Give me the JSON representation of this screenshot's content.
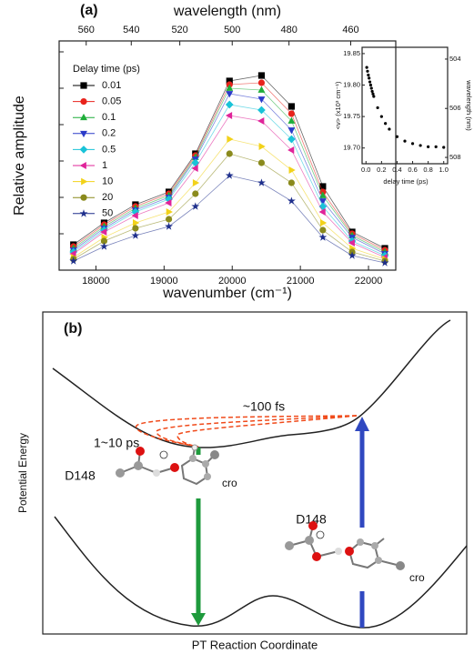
{
  "chart_data": [
    {
      "type": "line",
      "label": "(a)",
      "x_label": "wavenumber (cm⁻¹)",
      "x2_label": "wavelength (nm)",
      "y_label": "Relative amplitude",
      "legend_title": "Delay time (ps)",
      "x": [
        17670,
        18120,
        18580,
        19070,
        19460,
        19960,
        20430,
        20870,
        21330,
        21760,
        22240
      ],
      "series": [
        {
          "name": "0.01",
          "color": "#000000",
          "marker": "square",
          "values": [
            0.7,
            1.3,
            1.8,
            2.15,
            3.2,
            5.2,
            5.35,
            4.5,
            2.3,
            1.05,
            0.6
          ]
        },
        {
          "name": "0.05",
          "color": "#e8231c",
          "marker": "circle",
          "values": [
            0.65,
            1.25,
            1.75,
            2.1,
            3.15,
            5.1,
            5.15,
            4.3,
            2.15,
            1.0,
            0.55
          ]
        },
        {
          "name": "0.1",
          "color": "#1fae3a",
          "marker": "triangle-up",
          "values": [
            0.6,
            1.2,
            1.7,
            2.05,
            3.1,
            5.0,
            4.95,
            4.1,
            2.05,
            0.95,
            0.5
          ]
        },
        {
          "name": "0.2",
          "color": "#2b3bc9",
          "marker": "triangle-down",
          "values": [
            0.55,
            1.15,
            1.65,
            2.0,
            3.05,
            4.85,
            4.7,
            3.85,
            1.9,
            0.9,
            0.45
          ]
        },
        {
          "name": "0.5",
          "color": "#19c3d8",
          "marker": "diamond",
          "values": [
            0.5,
            1.1,
            1.6,
            1.95,
            2.95,
            4.55,
            4.4,
            3.6,
            1.75,
            0.8,
            0.4
          ]
        },
        {
          "name": "1",
          "color": "#e0249a",
          "marker": "triangle-left",
          "values": [
            0.45,
            1.05,
            1.5,
            1.85,
            2.8,
            4.25,
            4.1,
            3.3,
            1.6,
            0.75,
            0.35
          ]
        },
        {
          "name": "10",
          "color": "#f2d21a",
          "marker": "triangle-right",
          "values": [
            0.35,
            0.9,
            1.3,
            1.6,
            2.4,
            3.6,
            3.4,
            2.75,
            1.3,
            0.6,
            0.3
          ]
        },
        {
          "name": "20",
          "color": "#8a8a1c",
          "marker": "circle",
          "values": [
            0.3,
            0.8,
            1.15,
            1.4,
            2.1,
            3.2,
            2.95,
            2.4,
            1.1,
            0.5,
            0.25
          ]
        },
        {
          "name": "50",
          "color": "#1e2f8c",
          "marker": "star",
          "values": [
            0.25,
            0.65,
            0.95,
            1.2,
            1.75,
            2.6,
            2.4,
            1.9,
            0.9,
            0.4,
            0.2
          ]
        }
      ],
      "xlim": [
        17460,
        22400
      ],
      "xticks": [
        18000,
        19000,
        20000,
        21000,
        22000
      ],
      "x2ticks": [
        560,
        540,
        520,
        500,
        480,
        460
      ],
      "x2_scale": "reciprocal",
      "ylim": [
        0,
        6.3
      ],
      "yticks": [
        1,
        2,
        3,
        4,
        5,
        6
      ],
      "ytick_labels": false
    },
    {
      "type": "scatter",
      "x_label": "delay time (ps)",
      "y_label": "<ν> (x10³ cm⁻¹)",
      "y2_label": "wavelength (nm)",
      "color": "#000000",
      "x": [
        0.01,
        0.02,
        0.03,
        0.04,
        0.05,
        0.06,
        0.07,
        0.08,
        0.09,
        0.1,
        0.15,
        0.2,
        0.25,
        0.3,
        0.4,
        0.5,
        0.6,
        0.7,
        0.8,
        0.9,
        1.0
      ],
      "values": [
        19.828,
        19.822,
        19.816,
        19.811,
        19.805,
        19.8,
        19.795,
        19.79,
        19.786,
        19.782,
        19.764,
        19.75,
        19.739,
        19.73,
        19.718,
        19.711,
        19.707,
        19.704,
        19.702,
        19.702,
        19.701
      ],
      "xlim": [
        -0.05,
        1.05
      ],
      "xticks": [
        {
          "value": 0,
          "label": "0.0"
        },
        0.2,
        0.4,
        0.6,
        0.8,
        {
          "value": 1,
          "label": "1.0"
        }
      ],
      "ylim": [
        19.675,
        19.86
      ],
      "yticks": [
        {
          "value": 19.7,
          "label": "19.70"
        },
        19.75,
        {
          "value": 19.8,
          "label": "19.80"
        },
        19.85
      ],
      "y2ticks": [
        504,
        506,
        508
      ],
      "y2_scale": "reciprocal"
    }
  ],
  "diagram": {
    "label": "(b)",
    "fast": "~100 fs",
    "slow": "1~10 ps",
    "left_residue": "D148",
    "left_chromophore": "cro",
    "right_residue": "D148",
    "right_chromophore": "cro",
    "y_label": "Potential Energy",
    "x_label": "PT Reaction Coordinate"
  }
}
